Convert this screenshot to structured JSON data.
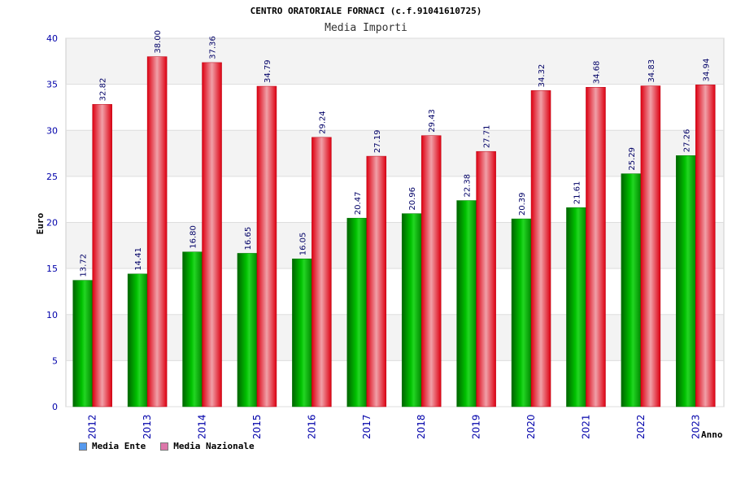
{
  "chart_data": {
    "type": "bar",
    "title": "CENTRO ORATORIALE FORNACI (c.f.91041610725)",
    "subtitle": "Media Importi",
    "xlabel": "Anno",
    "ylabel": "Euro",
    "ylim": [
      0,
      40
    ],
    "yticks": [
      0,
      5,
      10,
      15,
      20,
      25,
      30,
      35,
      40
    ],
    "grid": true,
    "legend_position": "bottom-left",
    "categories": [
      "2012",
      "2013",
      "2014",
      "2015",
      "2016",
      "2017",
      "2018",
      "2019",
      "2020",
      "2021",
      "2022",
      "2023"
    ],
    "series": [
      {
        "name": "Media Ente",
        "color": "#00aa00",
        "legend_color": "#5599ee",
        "values": [
          13.72,
          14.41,
          16.8,
          16.65,
          16.05,
          20.47,
          20.96,
          22.38,
          20.39,
          21.61,
          25.29,
          27.26
        ],
        "labels": [
          "13.72",
          "14.41",
          "16.80",
          "16.65",
          "16.05",
          "20.47",
          "20.96",
          "22.38",
          "20.39",
          "21.61",
          "25.29",
          "27.26"
        ]
      },
      {
        "name": "Media Nazionale",
        "color": "#ee1122",
        "legend_color": "#dd77aa",
        "values": [
          32.82,
          38.0,
          37.36,
          34.79,
          29.24,
          27.19,
          29.43,
          27.71,
          34.32,
          34.68,
          34.83,
          34.94
        ],
        "labels": [
          "32.82",
          "38.00",
          "37.36",
          "34.79",
          "29.24",
          "27.19",
          "29.43",
          "27.71",
          "34.32",
          "34.68",
          "34.83",
          "34.94"
        ]
      }
    ]
  }
}
